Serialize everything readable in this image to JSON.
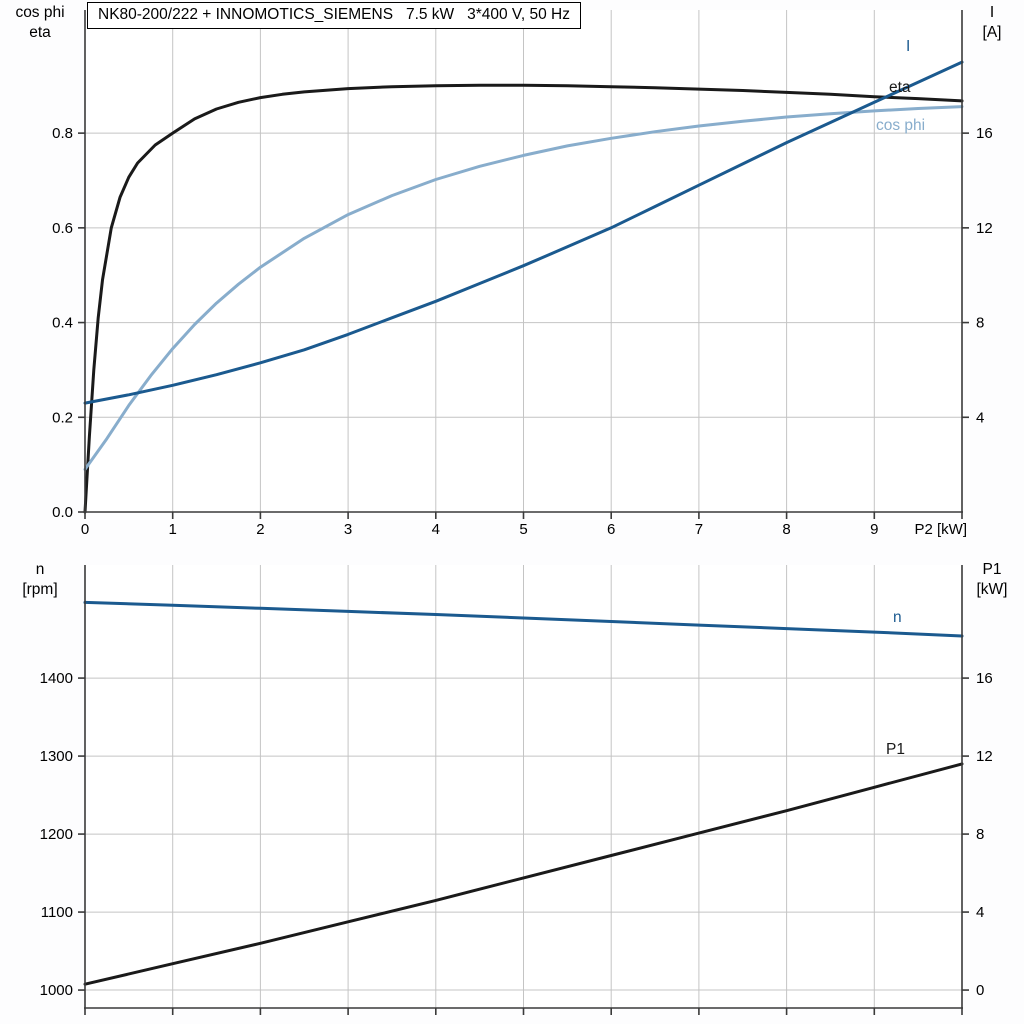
{
  "colors": {
    "black": "#1a1a1a",
    "dark_blue": "#1b5a8f",
    "light_blue": "#88adcc",
    "grid": "#c4c4c4",
    "axis": "#3a3a3a",
    "plot_background": "#ffffff",
    "text": "#000000"
  },
  "chart_data": [
    {
      "type": "line",
      "title": "NK80-200/222 + INNOMOTICS_SIEMENS   7.5 kW   3*400 V, 50 Hz",
      "xlabel": "P2 [kW]",
      "left_axis_label": [
        "cos phi",
        "eta"
      ],
      "right_axis_label": [
        "I",
        "[A]"
      ],
      "xlim": [
        0,
        10
      ],
      "ylim_left": [
        0,
        1.06
      ],
      "ylim_right": [
        0,
        21.2
      ],
      "grid": true,
      "legend_position": "inline-right",
      "x_ticks": [
        0,
        1,
        2,
        3,
        4,
        5,
        6,
        7,
        8,
        9,
        10
      ],
      "x_tick_labels": [
        "0",
        "1",
        "2",
        "3",
        "4",
        "5",
        "6",
        "7",
        "8",
        "9",
        ""
      ],
      "left_ticks": [
        0,
        0.2,
        0.4,
        0.6,
        0.8
      ],
      "left_tick_labels": [
        "0.0",
        "0.2",
        "0.4",
        "0.6",
        "0.8"
      ],
      "right_ticks": [
        4,
        8,
        12,
        16
      ],
      "right_tick_labels": [
        "4",
        "8",
        "12",
        "16"
      ],
      "series": [
        {
          "name": "eta",
          "axis": "left",
          "color": "black",
          "points": [
            [
              0,
              0
            ],
            [
              0.05,
              0.16
            ],
            [
              0.1,
              0.3
            ],
            [
              0.15,
              0.41
            ],
            [
              0.2,
              0.49
            ],
            [
              0.3,
              0.6
            ],
            [
              0.4,
              0.665
            ],
            [
              0.5,
              0.707
            ],
            [
              0.6,
              0.737
            ],
            [
              0.8,
              0.775
            ],
            [
              1,
              0.8
            ],
            [
              1.25,
              0.83
            ],
            [
              1.5,
              0.851
            ],
            [
              1.75,
              0.865
            ],
            [
              2,
              0.875
            ],
            [
              2.25,
              0.882
            ],
            [
              2.5,
              0.887
            ],
            [
              3,
              0.894
            ],
            [
              3.5,
              0.898
            ],
            [
              4,
              0.9
            ],
            [
              4.5,
              0.901
            ],
            [
              5,
              0.901
            ],
            [
              5.5,
              0.9
            ],
            [
              6,
              0.898
            ],
            [
              6.5,
              0.896
            ],
            [
              7,
              0.893
            ],
            [
              7.5,
              0.89
            ],
            [
              8,
              0.886
            ],
            [
              8.5,
              0.882
            ],
            [
              9,
              0.877
            ],
            [
              9.5,
              0.873
            ],
            [
              10,
              0.868
            ]
          ]
        },
        {
          "name": "cos phi",
          "axis": "left",
          "color": "light_blue",
          "points": [
            [
              0,
              0.09
            ],
            [
              0.25,
              0.155
            ],
            [
              0.5,
              0.225
            ],
            [
              0.75,
              0.288
            ],
            [
              1,
              0.345
            ],
            [
              1.25,
              0.396
            ],
            [
              1.5,
              0.441
            ],
            [
              1.75,
              0.481
            ],
            [
              2,
              0.517
            ],
            [
              2.5,
              0.578
            ],
            [
              3,
              0.628
            ],
            [
              3.5,
              0.668
            ],
            [
              4,
              0.702
            ],
            [
              4.5,
              0.73
            ],
            [
              5,
              0.753
            ],
            [
              5.5,
              0.773
            ],
            [
              6,
              0.789
            ],
            [
              6.5,
              0.803
            ],
            [
              7,
              0.815
            ],
            [
              7.5,
              0.825
            ],
            [
              8,
              0.834
            ],
            [
              8.5,
              0.841
            ],
            [
              9,
              0.847
            ],
            [
              9.5,
              0.852
            ],
            [
              10,
              0.856
            ]
          ]
        },
        {
          "name": "I",
          "axis": "right",
          "color": "dark_blue",
          "points": [
            [
              0,
              4.6
            ],
            [
              0.5,
              4.95
            ],
            [
              1,
              5.35
            ],
            [
              1.5,
              5.8
            ],
            [
              2,
              6.3
            ],
            [
              2.5,
              6.85
            ],
            [
              3,
              7.5
            ],
            [
              3.5,
              8.2
            ],
            [
              4,
              8.9
            ],
            [
              4.5,
              9.65
            ],
            [
              5,
              10.4
            ],
            [
              5.5,
              11.2
            ],
            [
              6,
              12
            ],
            [
              6.5,
              12.9
            ],
            [
              7,
              13.8
            ],
            [
              7.5,
              14.7
            ],
            [
              8,
              15.6
            ],
            [
              8.5,
              16.45
            ],
            [
              9,
              17.3
            ],
            [
              9.5,
              18.15
            ],
            [
              10,
              19
            ]
          ]
        }
      ]
    },
    {
      "type": "line",
      "title": "",
      "xlabel": "",
      "left_axis_label": [
        "n",
        "[rpm]"
      ],
      "right_axis_label": [
        "P1",
        "[kW]"
      ],
      "xlim": [
        0,
        10
      ],
      "ylim_left": [
        977,
        1545
      ],
      "ylim_right": [
        -0.92,
        21.8
      ],
      "grid": true,
      "legend_position": "inline-right",
      "x_ticks": [
        0,
        1,
        2,
        3,
        4,
        5,
        6,
        7,
        8,
        9,
        10
      ],
      "x_tick_labels": [
        "",
        "",
        "",
        "",
        "",
        "",
        "",
        "",
        "",
        "",
        ""
      ],
      "left_ticks": [
        1000,
        1100,
        1200,
        1300,
        1400
      ],
      "left_tick_labels": [
        "1000",
        "1100",
        "1200",
        "1300",
        "1400"
      ],
      "right_ticks": [
        0,
        4,
        8,
        12,
        16
      ],
      "right_tick_labels": [
        "0",
        "4",
        "8",
        "12",
        "16"
      ],
      "series": [
        {
          "name": "n",
          "axis": "left",
          "color": "dark_blue",
          "points": [
            [
              0,
              1497
            ],
            [
              1,
              1493.5
            ],
            [
              2,
              1489.5
            ],
            [
              3,
              1485.5
            ],
            [
              4,
              1481.5
            ],
            [
              5,
              1477
            ],
            [
              6,
              1472.5
            ],
            [
              7,
              1468
            ],
            [
              8,
              1463.5
            ],
            [
              9,
              1459
            ],
            [
              10,
              1454
            ]
          ]
        },
        {
          "name": "P1",
          "axis": "right",
          "color": "black",
          "points": [
            [
              0,
              0.3
            ],
            [
              1,
              1.35
            ],
            [
              2,
              2.4
            ],
            [
              3,
              3.5
            ],
            [
              4,
              4.6
            ],
            [
              5,
              5.75
            ],
            [
              6,
              6.9
            ],
            [
              7,
              8.05
            ],
            [
              8,
              9.2
            ],
            [
              9,
              10.4
            ],
            [
              10,
              11.6
            ]
          ]
        }
      ]
    }
  ]
}
